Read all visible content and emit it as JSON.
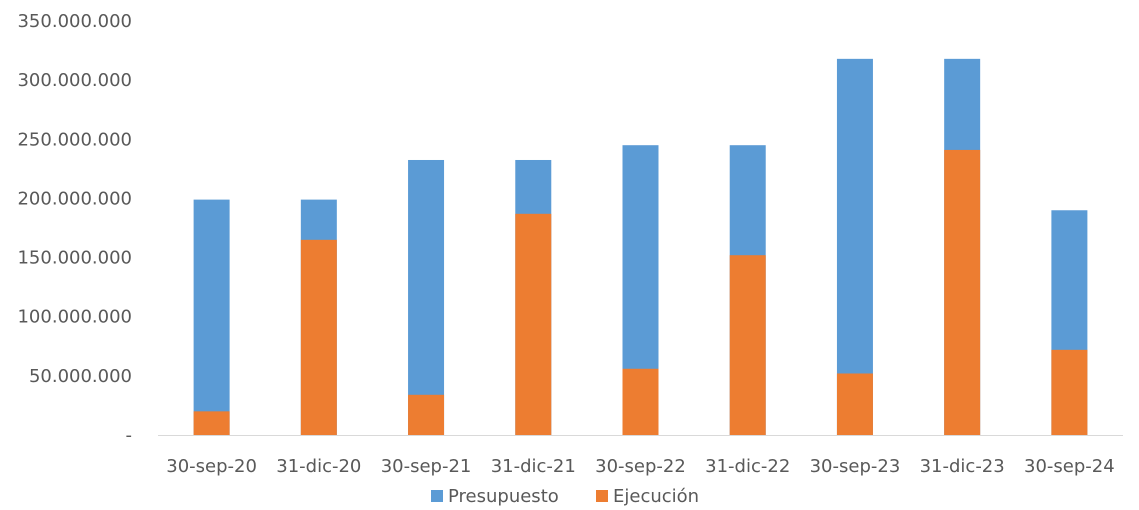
{
  "chart_data": {
    "type": "bar",
    "stacked": "overlay",
    "categories": [
      "30-sep-20",
      "31-dic-20",
      "30-sep-21",
      "31-dic-21",
      "30-sep-22",
      "31-dic-22",
      "30-sep-23",
      "31-dic-23",
      "30-sep-24"
    ],
    "series": [
      {
        "name": "Presupuesto",
        "color": "#5B9BD5",
        "values": [
          199000000,
          199000000,
          232500000,
          232500000,
          245000000,
          245000000,
          318000000,
          318000000,
          190000000
        ]
      },
      {
        "name": "Ejecución",
        "color": "#ED7D31",
        "values": [
          20000000,
          165000000,
          34000000,
          187000000,
          56000000,
          152000000,
          52000000,
          241000000,
          72000000
        ]
      }
    ],
    "ylim": [
      0,
      350000000
    ],
    "yticks": [
      {
        "value": 0,
        "label": "-"
      },
      {
        "value": 50000000,
        "label": "50.000.000"
      },
      {
        "value": 100000000,
        "label": "100.000.000"
      },
      {
        "value": 150000000,
        "label": "150.000.000"
      },
      {
        "value": 200000000,
        "label": "200.000.000"
      },
      {
        "value": 250000000,
        "label": "250.000.000"
      },
      {
        "value": 300000000,
        "label": "300.000.000"
      },
      {
        "value": 350000000,
        "label": "350.000.000"
      }
    ],
    "grid": false,
    "legend": "bottom"
  }
}
